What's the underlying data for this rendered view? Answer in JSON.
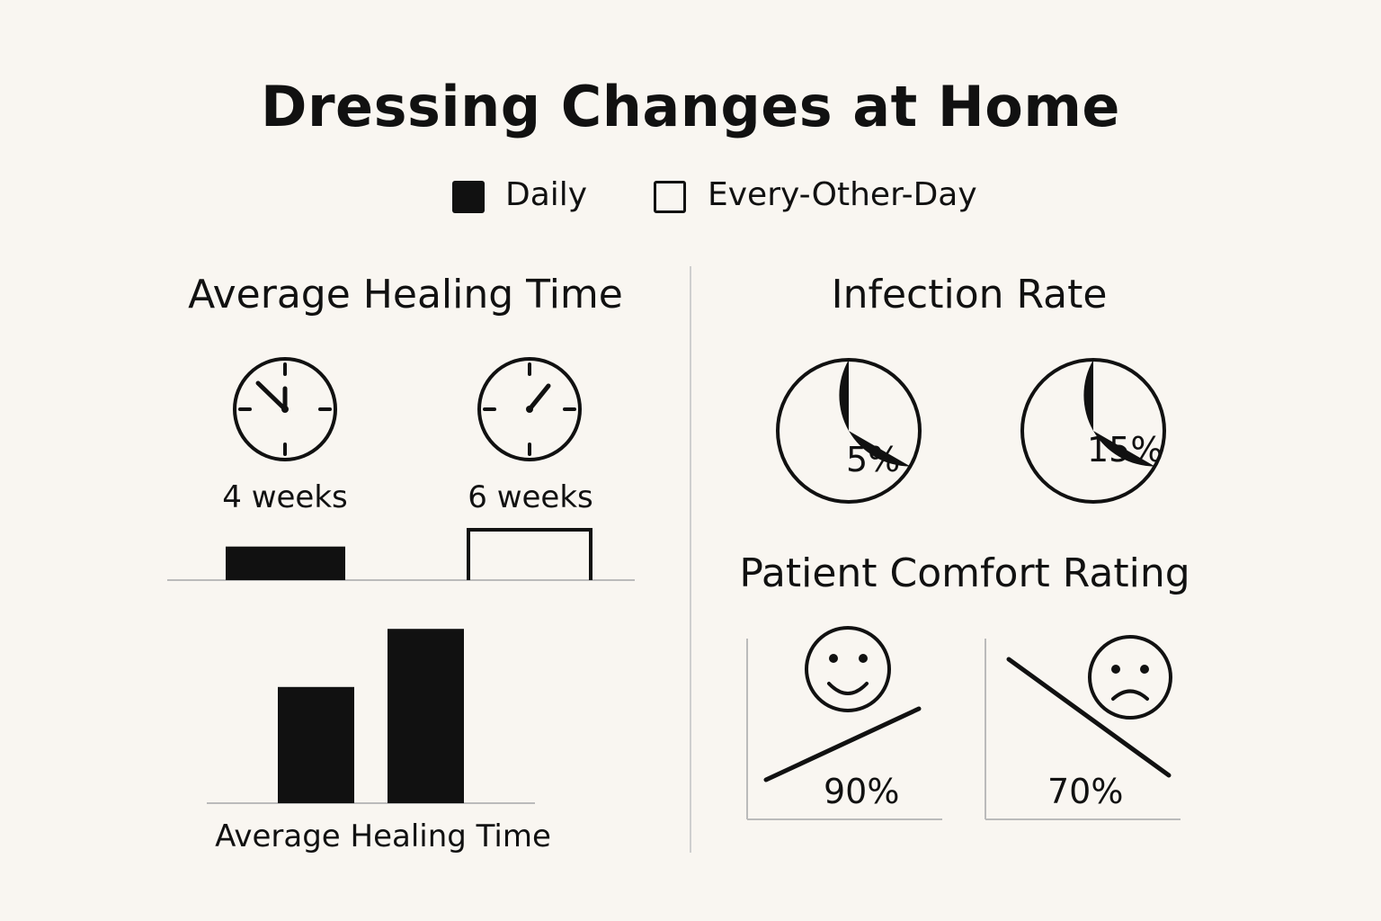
{
  "title": "Dressing Changes at Home",
  "legend": [
    {
      "label": "Daily",
      "style": "filled"
    },
    {
      "label": "Every-Other-Day",
      "style": "outline"
    }
  ],
  "colors": {
    "background": "#f9f6f1",
    "ink": "#111111",
    "axis": "#bbbbbb"
  },
  "chart_data": [
    {
      "type": "bar",
      "title": "Average Healing Time",
      "icons": [
        "clock-icon",
        "clock-icon"
      ],
      "categories": [
        "Daily",
        "Every-Other-Day"
      ],
      "value_labels": [
        "4 weeks",
        "6 weeks"
      ],
      "values": [
        4,
        6
      ],
      "unit": "weeks"
    },
    {
      "type": "bar",
      "title": "",
      "xlabel": "Average Healing Time",
      "categories": [
        "Daily",
        "Every-Other-Day"
      ],
      "values": [
        4,
        6
      ],
      "unit": "weeks"
    },
    {
      "type": "pie",
      "title": "Infection Rate",
      "categories": [
        "Daily",
        "Every-Other-Day"
      ],
      "value_labels": [
        "5%",
        "15%"
      ],
      "values": [
        5,
        15
      ],
      "unit": "%"
    },
    {
      "type": "line",
      "title": "Patient Comfort Rating",
      "categories": [
        "Daily",
        "Every-Other-Day"
      ],
      "icons": [
        "smiley-face-icon",
        "sad-face-icon"
      ],
      "trend": [
        "up",
        "down"
      ],
      "value_labels": [
        "90%",
        "70%"
      ],
      "values": [
        90,
        70
      ],
      "unit": "%"
    }
  ]
}
